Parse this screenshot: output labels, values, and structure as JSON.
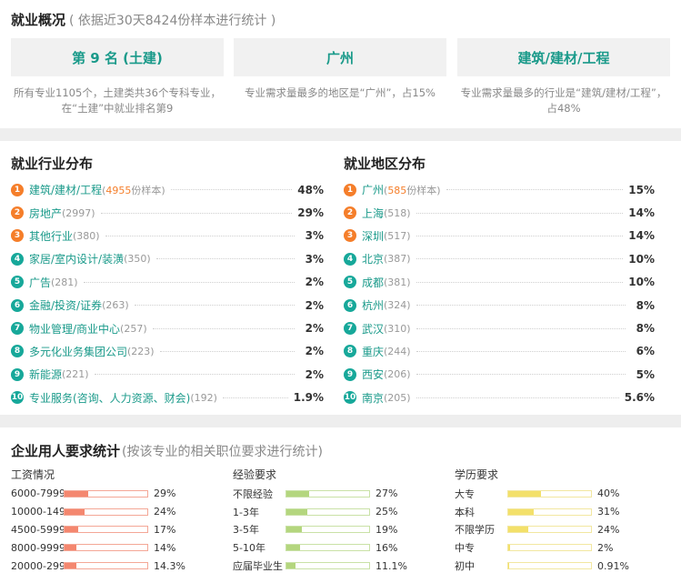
{
  "overview": {
    "title": "就业概况",
    "note": "( 依据近30天8424份样本进行统计 )",
    "boxes": [
      {
        "value": "第 9 名 (土建)",
        "desc": "所有专业1105个，土建类共36个专科专业，在“土建”中就业排名第9"
      },
      {
        "value": "广州",
        "desc": "专业需求量最多的地区是“广州”，占15%"
      },
      {
        "value": "建筑/建材/工程",
        "desc": "专业需求量最多的行业是“建筑/建材/工程”，占48%"
      }
    ]
  },
  "industry": {
    "title": "就业行业分布",
    "items": [
      {
        "rank": "1",
        "label": "建筑/建材/工程",
        "count": "(4955",
        "suffix": "份样本)",
        "pct": "48%"
      },
      {
        "rank": "2",
        "label": "房地产",
        "count": "(2997)",
        "pct": "29%"
      },
      {
        "rank": "3",
        "label": "其他行业",
        "count": "(380)",
        "pct": "3%"
      },
      {
        "rank": "4",
        "label": "家居/室内设计/装潢",
        "count": "(350)",
        "pct": "3%"
      },
      {
        "rank": "5",
        "label": "广告",
        "count": "(281)",
        "pct": "2%"
      },
      {
        "rank": "6",
        "label": "金融/投资/证券",
        "count": "(263)",
        "pct": "2%"
      },
      {
        "rank": "7",
        "label": "物业管理/商业中心",
        "count": "(257)",
        "pct": "2%"
      },
      {
        "rank": "8",
        "label": "多元化业务集团公司",
        "count": "(223)",
        "pct": "2%"
      },
      {
        "rank": "9",
        "label": "新能源",
        "count": "(221)",
        "pct": "2%"
      },
      {
        "rank": "10",
        "label": "专业服务(咨询、人力资源、财会)",
        "count": "(192)",
        "pct": "1.9%"
      }
    ]
  },
  "region": {
    "title": "就业地区分布",
    "items": [
      {
        "rank": "1",
        "label": "广州",
        "count": "(585",
        "suffix": "份样本)",
        "pct": "15%"
      },
      {
        "rank": "2",
        "label": "上海",
        "count": "(518)",
        "pct": "14%"
      },
      {
        "rank": "3",
        "label": "深圳",
        "count": "(517)",
        "pct": "14%"
      },
      {
        "rank": "4",
        "label": "北京",
        "count": "(387)",
        "pct": "10%"
      },
      {
        "rank": "5",
        "label": "成都",
        "count": "(381)",
        "pct": "10%"
      },
      {
        "rank": "6",
        "label": "杭州",
        "count": "(324)",
        "pct": "8%"
      },
      {
        "rank": "7",
        "label": "武汉",
        "count": "(310)",
        "pct": "8%"
      },
      {
        "rank": "8",
        "label": "重庆",
        "count": "(244)",
        "pct": "6%"
      },
      {
        "rank": "9",
        "label": "西安",
        "count": "(206)",
        "pct": "5%"
      },
      {
        "rank": "10",
        "label": "南京",
        "count": "(205)",
        "pct": "5.6%"
      }
    ]
  },
  "requirements": {
    "title": "企业用人要求统计",
    "note": "(按该专业的相关职位要求进行统计)",
    "columns": [
      {
        "head": "工资情况",
        "color": "#f4876f",
        "border": "#f4a796",
        "rows": [
          {
            "label": "6000-7999",
            "val": "29%",
            "fill": 0.29
          },
          {
            "label": "10000-149",
            "val": "24%",
            "fill": 0.24
          },
          {
            "label": "4500-5999",
            "val": "17%",
            "fill": 0.17
          },
          {
            "label": "8000-9999",
            "val": "14%",
            "fill": 0.14
          },
          {
            "label": "20000-299",
            "val": "14.3%",
            "fill": 0.143
          }
        ]
      },
      {
        "head": "经验要求",
        "color": "#b4d67e",
        "border": "#c9e1a6",
        "rows": [
          {
            "label": "不限经验",
            "val": "27%",
            "fill": 0.27
          },
          {
            "label": "1-3年",
            "val": "25%",
            "fill": 0.25
          },
          {
            "label": "3-5年",
            "val": "19%",
            "fill": 0.19
          },
          {
            "label": "5-10年",
            "val": "16%",
            "fill": 0.16
          },
          {
            "label": "应届毕业生",
            "val": "11.1%",
            "fill": 0.111
          }
        ]
      },
      {
        "head": "学历要求",
        "color": "#f3e06a",
        "border": "#f2e7a0",
        "rows": [
          {
            "label": "大专",
            "val": "40%",
            "fill": 0.4
          },
          {
            "label": "本科",
            "val": "31%",
            "fill": 0.31
          },
          {
            "label": "不限学历",
            "val": "24%",
            "fill": 0.24
          },
          {
            "label": "中专",
            "val": "2%",
            "fill": 0.02
          },
          {
            "label": "初中",
            "val": "0.91%",
            "fill": 0.0091
          }
        ]
      }
    ]
  }
}
